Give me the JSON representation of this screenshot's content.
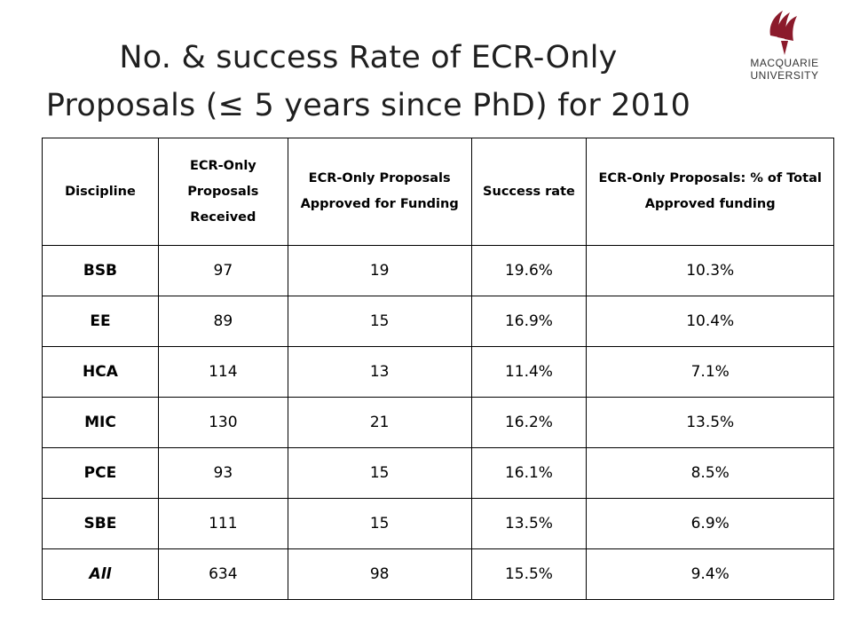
{
  "slide": {
    "title_line1": "No. & success Rate of ECR-Only",
    "title_line2": "Proposals (≤ 5 years since PhD) for 2010"
  },
  "logo": {
    "icon": "macquarie-lighthouse-logo-icon",
    "brand_color": "#8b1a2b",
    "line1": "MACQUARIE",
    "line2": "UNIVERSITY"
  },
  "table": {
    "headers": [
      "Discipline",
      "ECR-Only Proposals Received",
      "ECR-Only Proposals Approved for Funding",
      "Success rate",
      "ECR-Only Proposals: % of Total Approved funding"
    ],
    "rows": [
      [
        "BSB",
        "97",
        "19",
        "19.6%",
        "10.3%"
      ],
      [
        "EE",
        "89",
        "15",
        "16.9%",
        "10.4%"
      ],
      [
        "HCA",
        "114",
        "13",
        "11.4%",
        "7.1%"
      ],
      [
        "MIC",
        "130",
        "21",
        "16.2%",
        "13.5%"
      ],
      [
        "PCE",
        "93",
        "15",
        "16.1%",
        "8.5%"
      ],
      [
        "SBE",
        "111",
        "15",
        "13.5%",
        "6.9%"
      ],
      [
        "All",
        "634",
        "98",
        "15.5%",
        "9.4%"
      ]
    ]
  }
}
